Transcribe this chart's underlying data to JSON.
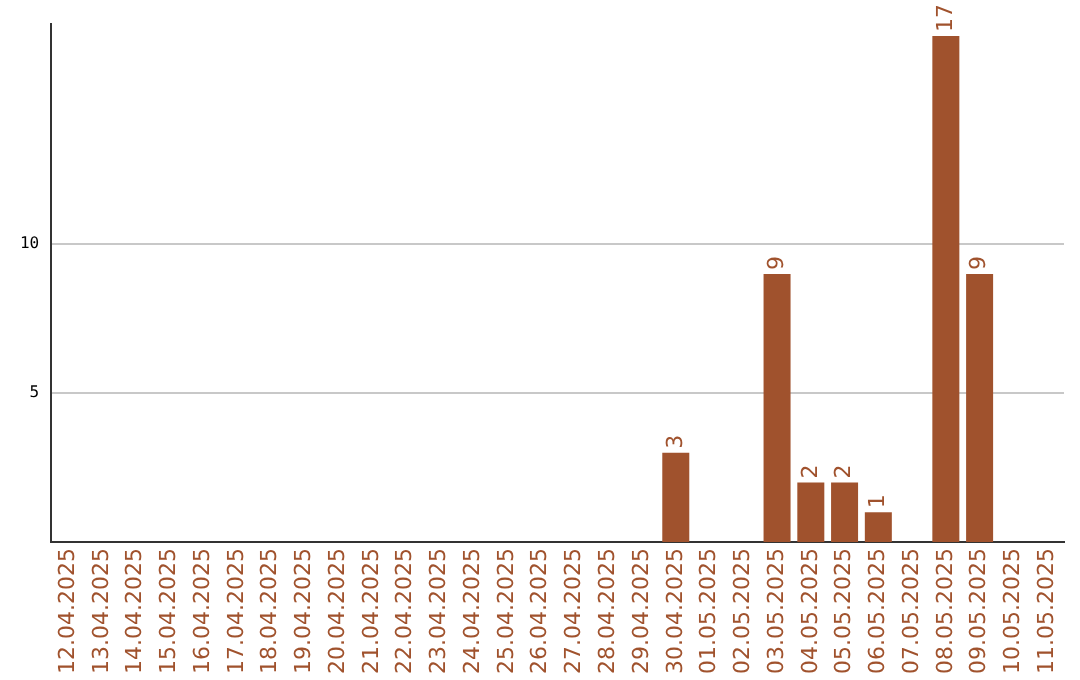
{
  "chart_data": {
    "type": "bar",
    "categories": [
      "12.04.2025",
      "13.04.2025",
      "14.04.2025",
      "15.04.2025",
      "16.04.2025",
      "17.04.2025",
      "18.04.2025",
      "19.04.2025",
      "20.04.2025",
      "21.04.2025",
      "22.04.2025",
      "23.04.2025",
      "24.04.2025",
      "25.04.2025",
      "26.04.2025",
      "27.04.2025",
      "28.04.2025",
      "29.04.2025",
      "30.04.2025",
      "01.05.2025",
      "02.05.2025",
      "03.05.2025",
      "04.05.2025",
      "05.05.2025",
      "06.05.2025",
      "07.05.2025",
      "08.05.2025",
      "09.05.2025",
      "10.05.2025",
      "11.05.2025"
    ],
    "values": [
      0,
      0,
      0,
      0,
      0,
      0,
      0,
      0,
      0,
      0,
      0,
      0,
      0,
      0,
      0,
      0,
      0,
      0,
      3,
      0,
      0,
      9,
      2,
      2,
      1,
      0,
      17,
      9,
      0,
      0
    ],
    "value_labels": [
      null,
      null,
      null,
      null,
      null,
      null,
      null,
      null,
      null,
      null,
      null,
      null,
      null,
      null,
      null,
      null,
      null,
      null,
      "3",
      null,
      null,
      "9",
      "2",
      "2",
      "1",
      null,
      "17",
      "9",
      null,
      null
    ],
    "color": "#a0522d",
    "ylim": [
      0,
      17.4
    ],
    "yticks": [
      5,
      10
    ],
    "grid": "y",
    "legend": false
  }
}
